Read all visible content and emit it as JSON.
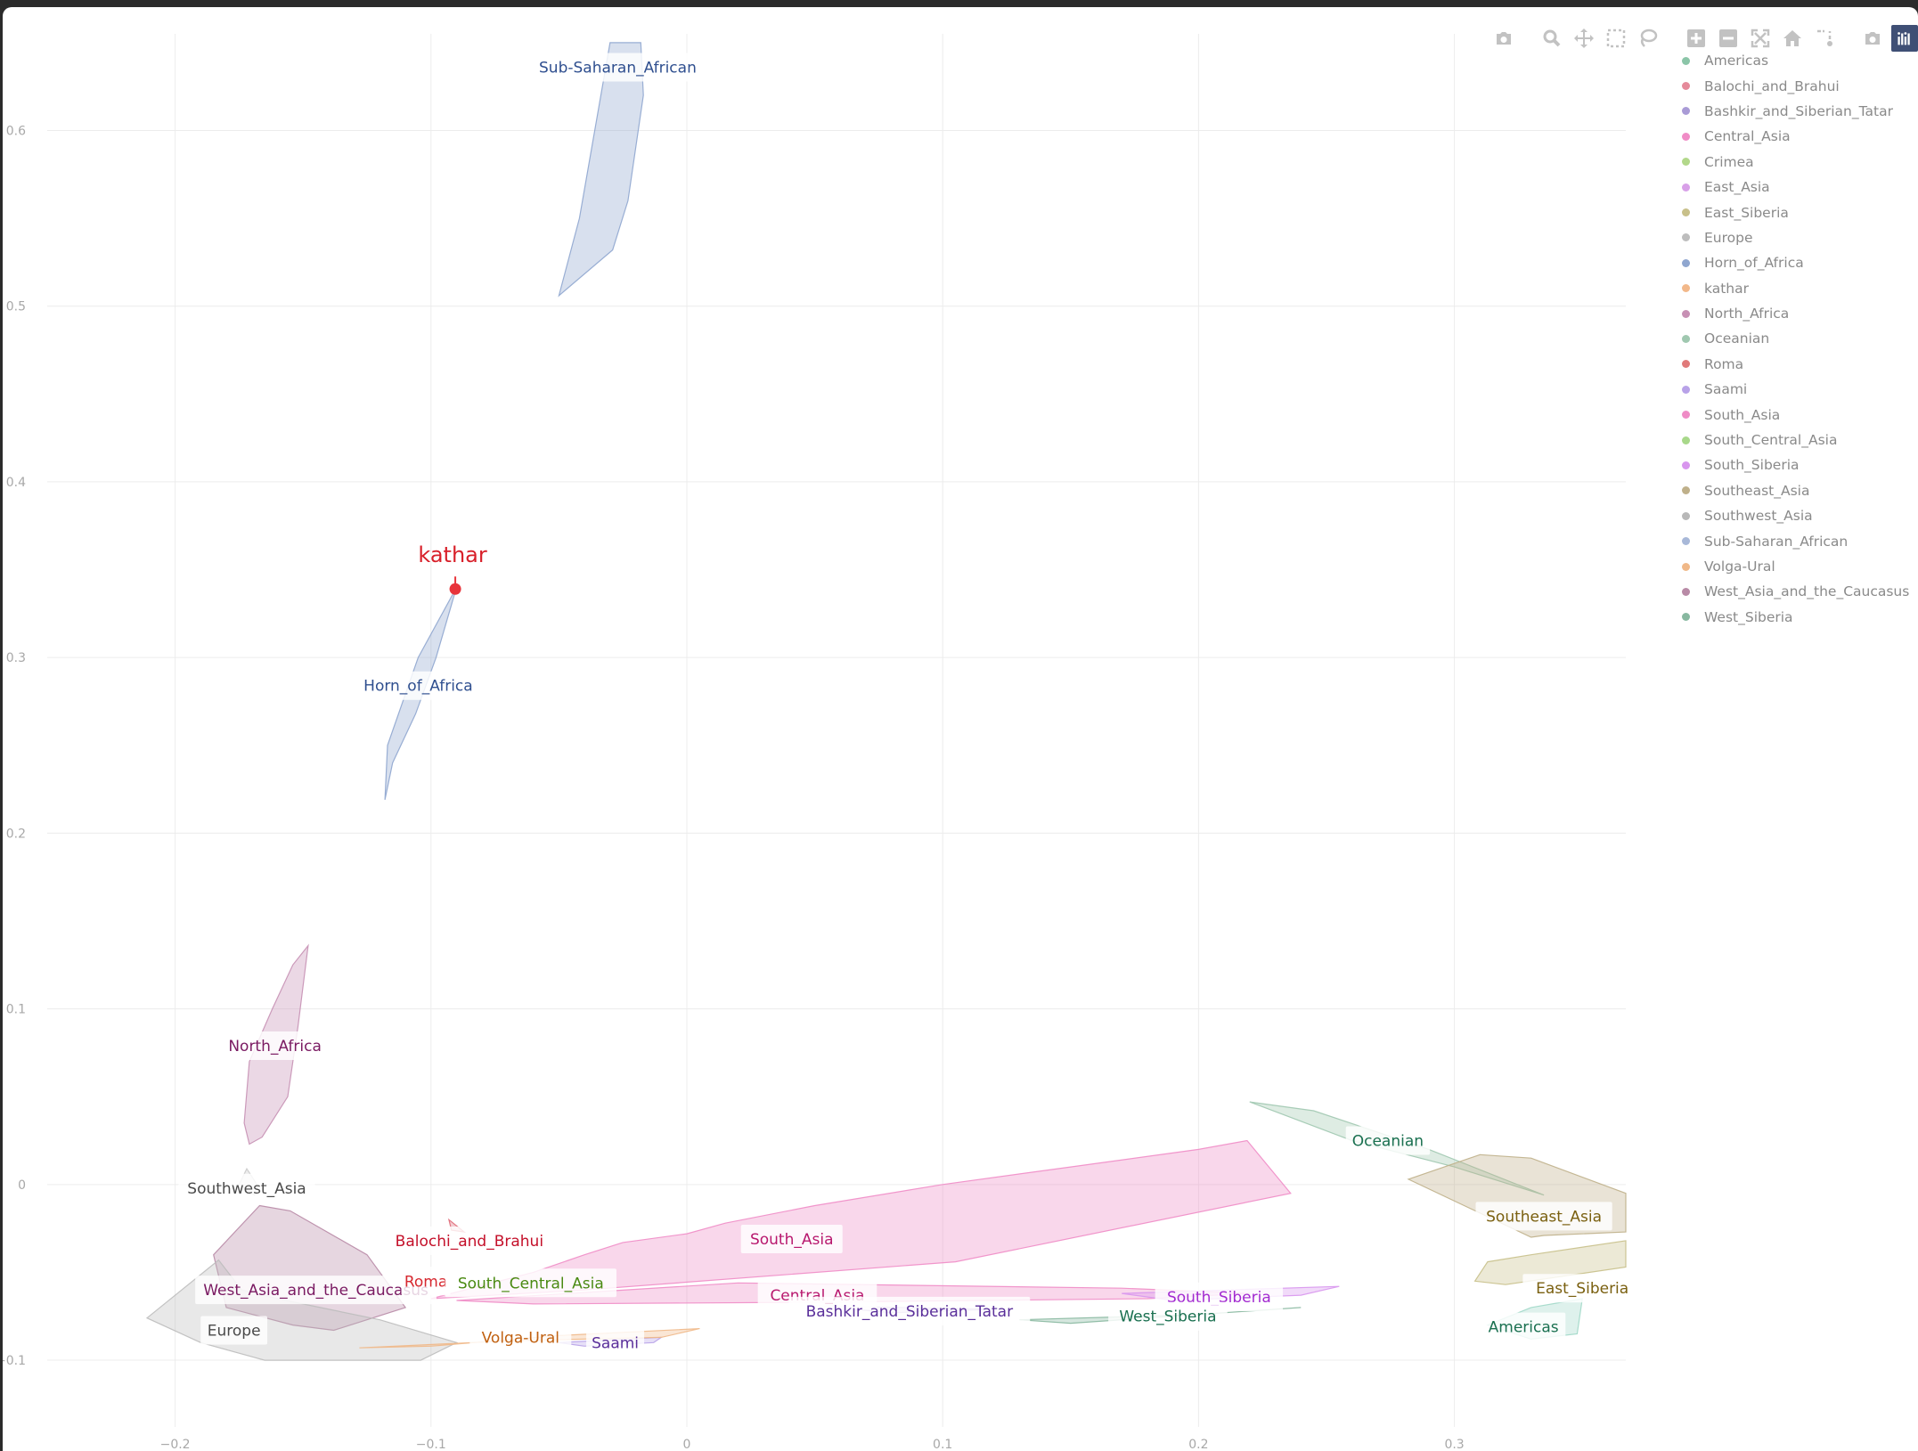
{
  "chart_data": {
    "type": "scatter",
    "title": "",
    "xlabel": "",
    "ylabel": "",
    "xlim": [
      -0.25,
      0.367
    ],
    "ylim": [
      -0.138,
      0.655
    ],
    "x_ticks": [
      -0.2,
      -0.1,
      0,
      0.1,
      0.2,
      0.3
    ],
    "x_tick_labels": [
      "−0.2",
      "−0.1",
      "0",
      "0.1",
      "0.2",
      "0.3"
    ],
    "y_ticks": [
      -0.1,
      0,
      0.1,
      0.2,
      0.3,
      0.4,
      0.5,
      0.6
    ],
    "y_tick_labels": [
      "−0.1",
      "0",
      "0.1",
      "0.2",
      "0.3",
      "0.4",
      "0.5",
      "0.6"
    ],
    "grid": true,
    "legend_position": "top-right",
    "point": {
      "name": "kathar",
      "x": -0.0905,
      "y": 0.339,
      "color": "#e8343b"
    },
    "groups": [
      {
        "name": "Sub-Saharan_African",
        "color": "#8fa6cf",
        "text_color": "#2f4f8f",
        "label": [
          -0.027,
          0.636
        ],
        "polygon": [
          [
            -0.03,
            0.65
          ],
          [
            -0.018,
            0.65
          ],
          [
            -0.017,
            0.62
          ],
          [
            -0.023,
            0.56
          ],
          [
            -0.029,
            0.532
          ],
          [
            -0.05,
            0.506
          ],
          [
            -0.042,
            0.55
          ]
        ]
      },
      {
        "name": "Horn_of_Africa",
        "color": "#8fa6cf",
        "text_color": "#2f4f8f",
        "label": [
          -0.105,
          0.284
        ],
        "polygon": [
          [
            -0.09,
            0.34
          ],
          [
            -0.098,
            0.3
          ],
          [
            -0.106,
            0.268
          ],
          [
            -0.115,
            0.24
          ],
          [
            -0.118,
            0.219
          ],
          [
            -0.117,
            0.25
          ],
          [
            -0.105,
            0.3
          ]
        ]
      },
      {
        "name": "North_Africa",
        "color": "#c790b4",
        "text_color": "#7a1a62",
        "label": [
          -0.161,
          0.079
        ],
        "polygon": [
          [
            -0.148,
            0.136
          ],
          [
            -0.154,
            0.125
          ],
          [
            -0.162,
            0.1
          ],
          [
            -0.171,
            0.07
          ],
          [
            -0.173,
            0.035
          ],
          [
            -0.171,
            0.023
          ],
          [
            -0.166,
            0.027
          ],
          [
            -0.156,
            0.05
          ],
          [
            -0.152,
            0.09
          ]
        ]
      },
      {
        "name": "Southwest_Asia",
        "color": "#c9c9c9",
        "text_color": "#4a4a4a",
        "label": [
          -0.172,
          -0.002
        ],
        "polygon": [
          [
            -0.172,
            0.009
          ],
          [
            -0.168,
            0.0
          ],
          [
            -0.169,
            -0.006
          ],
          [
            -0.175,
            0.0
          ]
        ]
      },
      {
        "name": "West_Asia_and_the_Caucasus",
        "color": "#b88aa6",
        "text_color": "#7a1a62",
        "label": [
          -0.145,
          -0.06
        ],
        "polygon": [
          [
            -0.167,
            -0.012
          ],
          [
            -0.155,
            -0.015
          ],
          [
            -0.125,
            -0.04
          ],
          [
            -0.11,
            -0.07
          ],
          [
            -0.138,
            -0.083
          ],
          [
            -0.154,
            -0.08
          ],
          [
            -0.18,
            -0.07
          ],
          [
            -0.185,
            -0.04
          ]
        ]
      },
      {
        "name": "Europe",
        "color": "#bdbdbd",
        "text_color": "#4a4a4a",
        "label": [
          -0.177,
          -0.083
        ],
        "polygon": [
          [
            -0.183,
            -0.043
          ],
          [
            -0.174,
            -0.06
          ],
          [
            -0.16,
            -0.065
          ],
          [
            -0.12,
            -0.077
          ],
          [
            -0.09,
            -0.09
          ],
          [
            -0.104,
            -0.1
          ],
          [
            -0.13,
            -0.1
          ],
          [
            -0.165,
            -0.1
          ],
          [
            -0.19,
            -0.09
          ],
          [
            -0.211,
            -0.076
          ]
        ]
      },
      {
        "name": "Balochi_and_Brahui",
        "color": "#e06a78",
        "text_color": "#c4102a",
        "label": [
          -0.085,
          -0.032
        ],
        "polygon": [
          [
            -0.093,
            -0.02
          ],
          [
            -0.087,
            -0.027
          ],
          [
            -0.092,
            -0.026
          ]
        ]
      },
      {
        "name": "Roma",
        "color": "#e07a7a",
        "text_color": "#d6282f",
        "label": [
          -0.102,
          -0.055
        ],
        "polygon": [
          [
            -0.106,
            -0.052
          ],
          [
            -0.1,
            -0.056
          ],
          [
            -0.106,
            -0.058
          ]
        ]
      },
      {
        "name": "South_Central_Asia",
        "color": "#a8d88a",
        "text_color": "#4a8a12",
        "label": [
          -0.061,
          -0.056
        ],
        "polygon": [
          [
            -0.085,
            -0.058
          ],
          [
            -0.075,
            -0.055
          ],
          [
            -0.08,
            -0.059
          ]
        ]
      },
      {
        "name": "South_Asia",
        "color": "#ef8cc6",
        "text_color": "#b8186e",
        "label": [
          0.041,
          -0.031
        ],
        "polygon": [
          [
            0.219,
            0.025
          ],
          [
            0.236,
            -0.005
          ],
          [
            0.105,
            -0.044
          ],
          [
            -0.04,
            -0.06
          ],
          [
            -0.1,
            -0.065
          ],
          [
            -0.06,
            -0.05
          ],
          [
            -0.04,
            -0.04
          ],
          [
            -0.025,
            -0.033
          ],
          [
            0.0,
            -0.028
          ],
          [
            0.015,
            -0.022
          ],
          [
            0.05,
            -0.012
          ],
          [
            0.1,
            0.0
          ],
          [
            0.15,
            0.01
          ],
          [
            0.2,
            0.02
          ]
        ]
      },
      {
        "name": "Central_Asia",
        "color": "#ef8cc6",
        "text_color": "#b8186e",
        "label": [
          0.051,
          -0.063
        ],
        "polygon": [
          [
            -0.09,
            -0.066
          ],
          [
            0.02,
            -0.056
          ],
          [
            0.17,
            -0.059
          ],
          [
            0.22,
            -0.062
          ],
          [
            0.18,
            -0.065
          ],
          [
            0.05,
            -0.067
          ],
          [
            -0.06,
            -0.068
          ]
        ]
      },
      {
        "name": "Bashkir_and_Siberian_Tatar",
        "color": "#b8a2d8",
        "text_color": "#5a2f9a",
        "label": [
          0.087,
          -0.072
        ],
        "polygon": [
          [
            0.05,
            -0.069
          ],
          [
            0.12,
            -0.071
          ],
          [
            0.08,
            -0.073
          ]
        ]
      },
      {
        "name": "South_Siberia",
        "color": "#d896ee",
        "text_color": "#a22ad0",
        "label": [
          0.208,
          -0.064
        ],
        "polygon": [
          [
            0.17,
            -0.062
          ],
          [
            0.255,
            -0.058
          ],
          [
            0.24,
            -0.063
          ],
          [
            0.19,
            -0.066
          ]
        ]
      },
      {
        "name": "West_Siberia",
        "color": "#88b8a0",
        "text_color": "#1a7050",
        "label": [
          0.188,
          -0.075
        ],
        "polygon": [
          [
            0.13,
            -0.077
          ],
          [
            0.2,
            -0.074
          ],
          [
            0.24,
            -0.07
          ],
          [
            0.22,
            -0.072
          ],
          [
            0.15,
            -0.079
          ]
        ]
      },
      {
        "name": "Saami",
        "color": "#b8a2e8",
        "text_color": "#5a2f9a",
        "label": [
          -0.028,
          -0.09
        ],
        "polygon": [
          [
            -0.05,
            -0.09
          ],
          [
            -0.01,
            -0.087
          ],
          [
            -0.013,
            -0.09
          ],
          [
            -0.04,
            -0.092
          ]
        ]
      },
      {
        "name": "Volga-Ural",
        "color": "#f0b888",
        "text_color": "#c06010",
        "label": [
          -0.065,
          -0.087
        ],
        "polygon": [
          [
            -0.128,
            -0.093
          ],
          [
            -0.07,
            -0.089
          ],
          [
            -0.01,
            -0.087
          ],
          [
            0.005,
            -0.082
          ],
          [
            -0.05,
            -0.086
          ],
          [
            -0.1,
            -0.092
          ]
        ]
      },
      {
        "name": "Oceanian",
        "color": "#a0c8b0",
        "text_color": "#1a7050",
        "label": [
          0.274,
          0.025
        ],
        "polygon": [
          [
            0.22,
            0.047
          ],
          [
            0.245,
            0.042
          ],
          [
            0.29,
            0.02
          ],
          [
            0.335,
            -0.006
          ],
          [
            0.3,
            0.01
          ],
          [
            0.26,
            0.025
          ]
        ]
      },
      {
        "name": "Southeast_Asia",
        "color": "#bfb08a",
        "text_color": "#7a6010",
        "label": [
          0.335,
          -0.018
        ],
        "polygon": [
          [
            0.282,
            0.003
          ],
          [
            0.31,
            0.017
          ],
          [
            0.33,
            0.015
          ],
          [
            0.367,
            -0.005
          ],
          [
            0.367,
            -0.027
          ],
          [
            0.335,
            -0.029
          ],
          [
            0.33,
            -0.03
          ]
        ]
      },
      {
        "name": "Americas",
        "color": "#a0d8c8",
        "text_color": "#1a7050",
        "label": [
          0.327,
          -0.081
        ],
        "polygon": [
          [
            0.313,
            -0.08
          ],
          [
            0.33,
            -0.07
          ],
          [
            0.35,
            -0.065
          ],
          [
            0.348,
            -0.085
          ],
          [
            0.33,
            -0.088
          ]
        ]
      },
      {
        "name": "East_Siberia",
        "color": "#c8c08a",
        "text_color": "#7a6010",
        "label": [
          0.35,
          -0.059
        ],
        "polygon": [
          [
            0.367,
            -0.047
          ],
          [
            0.367,
            -0.032
          ],
          [
            0.33,
            -0.04
          ],
          [
            0.313,
            -0.044
          ],
          [
            0.308,
            -0.055
          ],
          [
            0.32,
            -0.057
          ]
        ]
      },
      {
        "name": "Crimea",
        "color": "#b8d88a",
        "text_color": "#4a8a12",
        "label": null,
        "polygon": []
      },
      {
        "name": "East_Asia",
        "color": "#d8a2e8",
        "text_color": "#8a2ab0",
        "label": null,
        "polygon": []
      }
    ]
  },
  "legend": {
    "items": [
      {
        "label": "Americas",
        "color": "#8bc5a8"
      },
      {
        "label": "Balochi_and_Brahui",
        "color": "#e58a9a"
      },
      {
        "label": "Bashkir_and_Siberian_Tatar",
        "color": "#a99bd6"
      },
      {
        "label": "Central_Asia",
        "color": "#f08cc6"
      },
      {
        "label": "Crimea",
        "color": "#b2d88a"
      },
      {
        "label": "East_Asia",
        "color": "#d8a0e8"
      },
      {
        "label": "East_Siberia",
        "color": "#c8c08a"
      },
      {
        "label": "Europe",
        "color": "#bdbdbd"
      },
      {
        "label": "Horn_of_Africa",
        "color": "#8fa6cf"
      },
      {
        "label": "kathar",
        "color": "#f2b88a"
      },
      {
        "label": "North_Africa",
        "color": "#c790b4"
      },
      {
        "label": "Oceanian",
        "color": "#a0c8b0"
      },
      {
        "label": "Roma",
        "color": "#e07a7a"
      },
      {
        "label": "Saami",
        "color": "#b8a2e8"
      },
      {
        "label": "South_Asia",
        "color": "#ef8cc6"
      },
      {
        "label": "South_Central_Asia",
        "color": "#a8d88a"
      },
      {
        "label": "South_Siberia",
        "color": "#d896ee"
      },
      {
        "label": "Southeast_Asia",
        "color": "#bfb08a"
      },
      {
        "label": "Southwest_Asia",
        "color": "#b8b8b8"
      },
      {
        "label": "Sub-Saharan_African",
        "color": "#a8b8d8"
      },
      {
        "label": "Volga-Ural",
        "color": "#f0b888"
      },
      {
        "label": "West_Asia_and_the_Caucasus",
        "color": "#b88aa6"
      },
      {
        "label": "West_Siberia",
        "color": "#88b8a0"
      }
    ]
  },
  "modebar": {
    "buttons": [
      "camera-icon",
      "zoom-icon",
      "pan-icon",
      "box-select-icon",
      "lasso-icon",
      "zoom-in-icon",
      "zoom-out-icon",
      "autoscale-icon",
      "home-icon",
      "spike-lines-icon",
      "camera-icon-2"
    ],
    "logo": "plotly-logo-icon"
  }
}
